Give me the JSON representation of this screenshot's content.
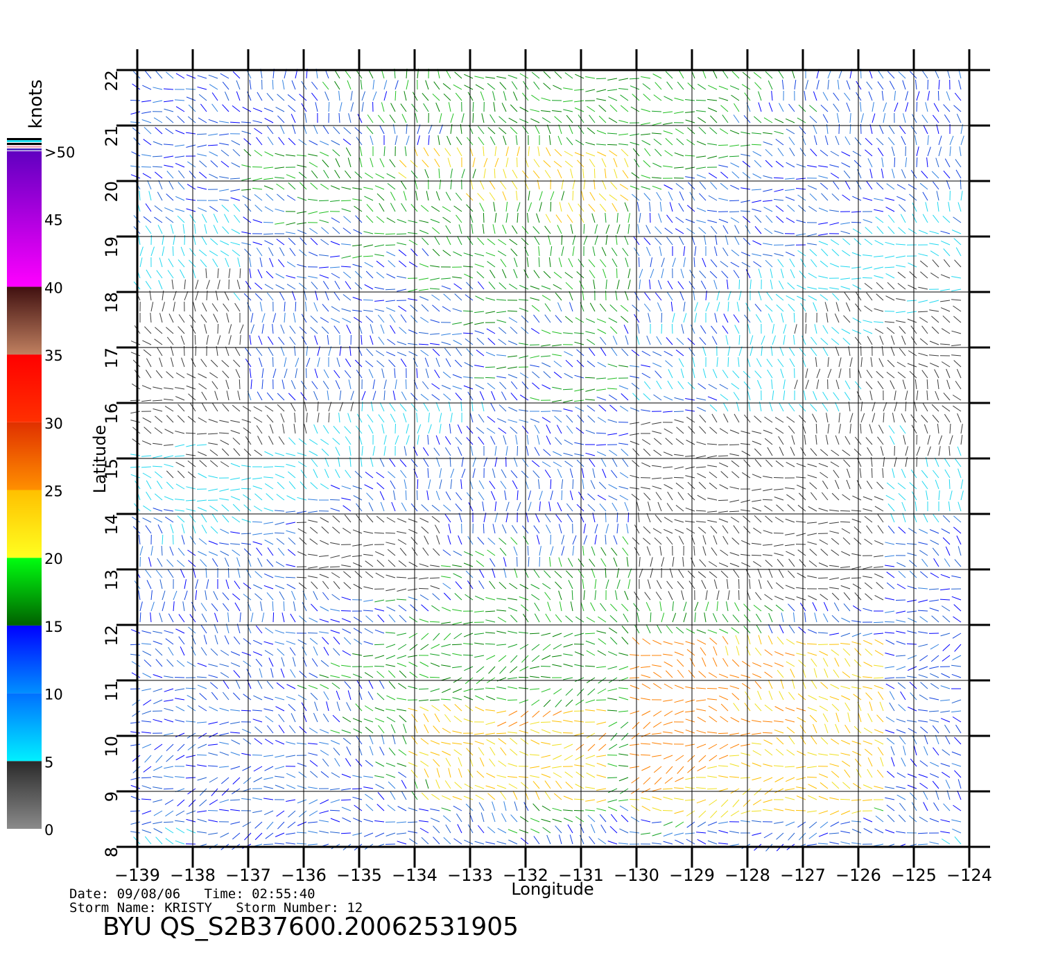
{
  "chart_data": {
    "type": "scatter",
    "subtype": "wind-vector field (scatterometer)",
    "xlabel": "Longitude",
    "ylabel": "Latitude",
    "xlim": [
      -139,
      -124
    ],
    "ylim": [
      8,
      22
    ],
    "x_ticks": [
      -139,
      -138,
      -137,
      -136,
      -135,
      -134,
      -133,
      -132,
      -131,
      -130,
      -129,
      -128,
      -127,
      -126,
      -125,
      -124
    ],
    "y_ticks": [
      8,
      9,
      10,
      11,
      12,
      13,
      14,
      15,
      16,
      17,
      18,
      19,
      20,
      21,
      22
    ],
    "grid": true,
    "colorbar": {
      "title": "knots",
      "labels": [
        "0",
        "5",
        "10",
        "15",
        "20",
        "25",
        "30",
        "35",
        "40",
        "45",
        ">50"
      ],
      "bands": [
        {
          "from": 0,
          "to": 5,
          "colors": [
            "#8a8a8a",
            "#2a2a2a"
          ]
        },
        {
          "from": 5,
          "to": 10,
          "colors": [
            "#00f0ff",
            "#0070ff"
          ]
        },
        {
          "from": 10,
          "to": 15,
          "colors": [
            "#0090ff",
            "#0000ff"
          ]
        },
        {
          "from": 15,
          "to": 20,
          "colors": [
            "#006000",
            "#00ff10"
          ]
        },
        {
          "from": 20,
          "to": 25,
          "colors": [
            "#ffff20",
            "#ffc000"
          ]
        },
        {
          "from": 25,
          "to": 30,
          "colors": [
            "#ff9000",
            "#e03000"
          ]
        },
        {
          "from": 30,
          "to": 35,
          "colors": [
            "#ff3000",
            "#ff0000"
          ]
        },
        {
          "from": 35,
          "to": 40,
          "colors": [
            "#c08060",
            "#401010"
          ]
        },
        {
          "from": 40,
          "to": 50,
          "colors": [
            "#ff00ff",
            "#6000c0"
          ]
        }
      ]
    }
  },
  "info": {
    "line1": "Date: 09/08/06   Time: 02:55:40",
    "line2": "Storm Name: KRISTY   Storm Number: 12",
    "id": "BYU QS_S2B37600.20062531905"
  }
}
